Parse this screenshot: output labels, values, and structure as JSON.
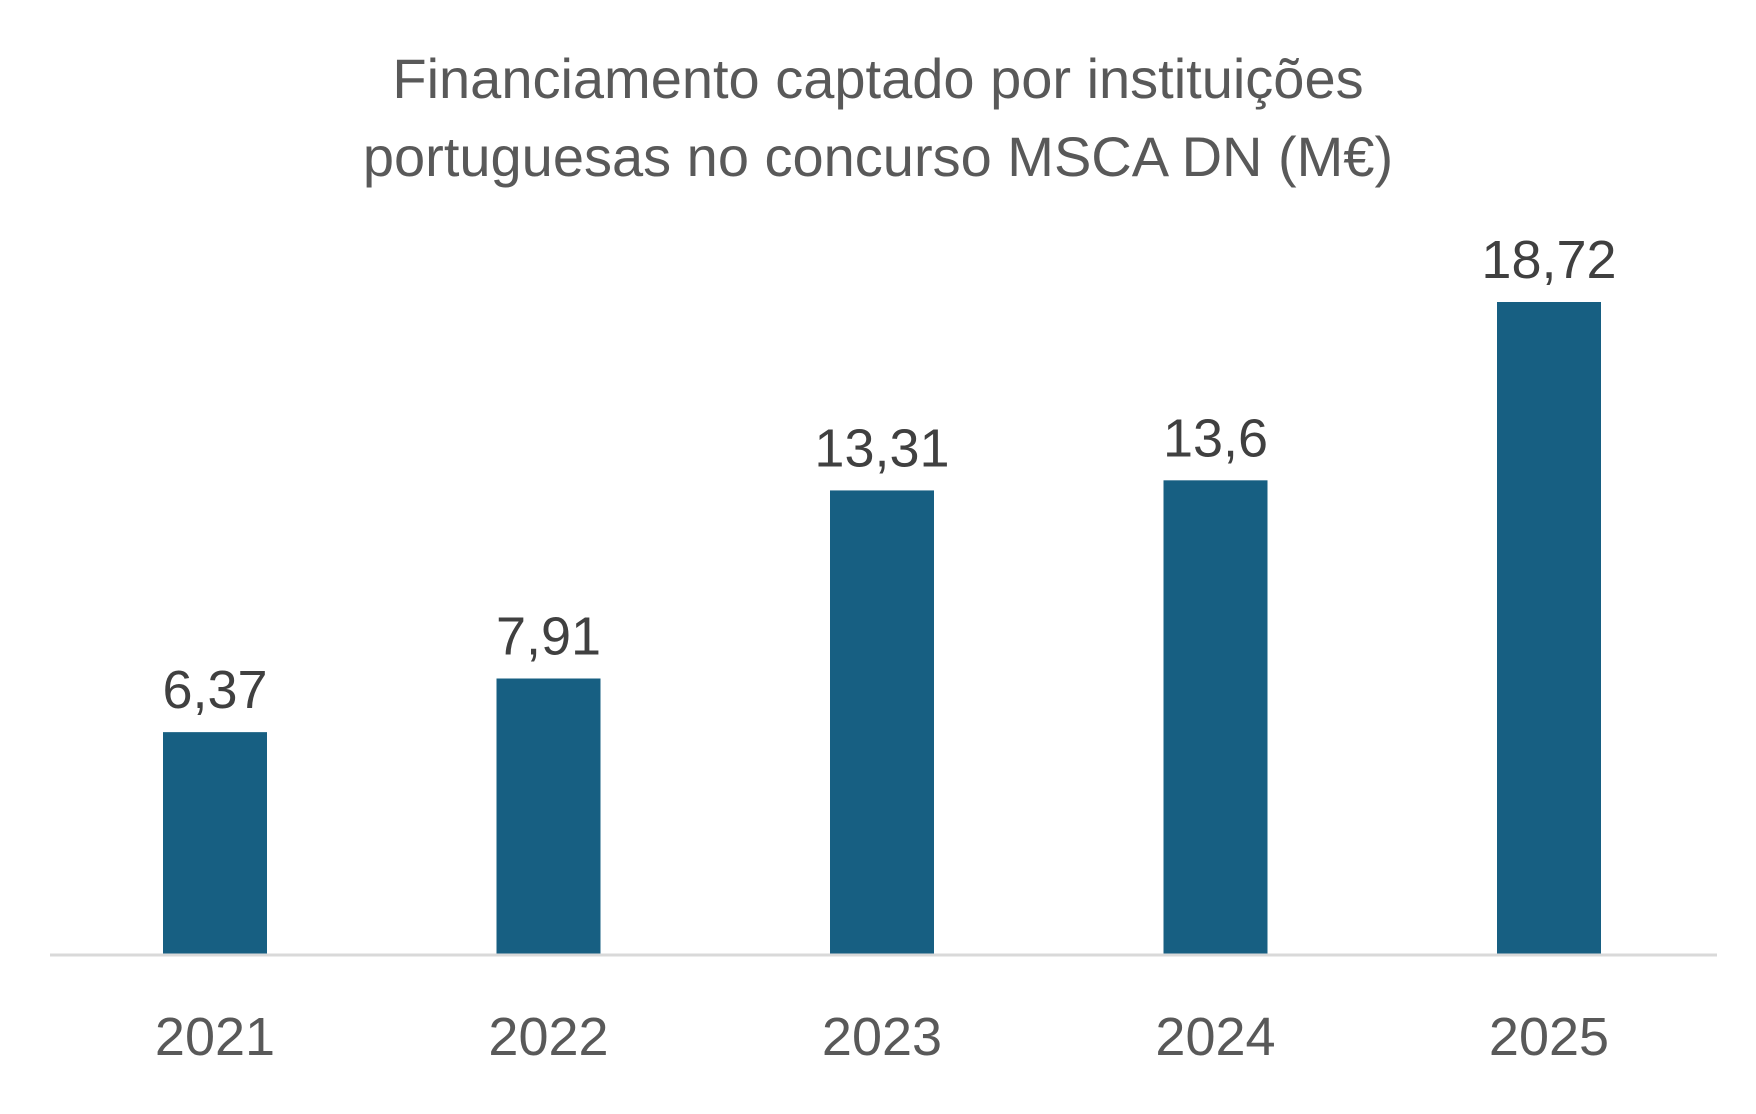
{
  "chart_data": {
    "type": "bar",
    "title_lines": [
      "Financiamento captado por instituições",
      "portuguesas no concurso MSCA DN (M€)"
    ],
    "categories": [
      "2021",
      "2022",
      "2023",
      "2024",
      "2025"
    ],
    "values": [
      6.37,
      7.91,
      13.31,
      13.6,
      18.72
    ],
    "data_labels": [
      "6,37",
      "7,91",
      "13,31",
      "13,6",
      "18,72"
    ],
    "xlabel": "",
    "ylabel": "",
    "ylim": [
      0,
      18.72
    ],
    "grid": false,
    "y_axis_visible": false,
    "bar_color": "#175f82",
    "axis_color": "#d9d9d9",
    "title_color": "#595959",
    "label_color": "#404040"
  }
}
